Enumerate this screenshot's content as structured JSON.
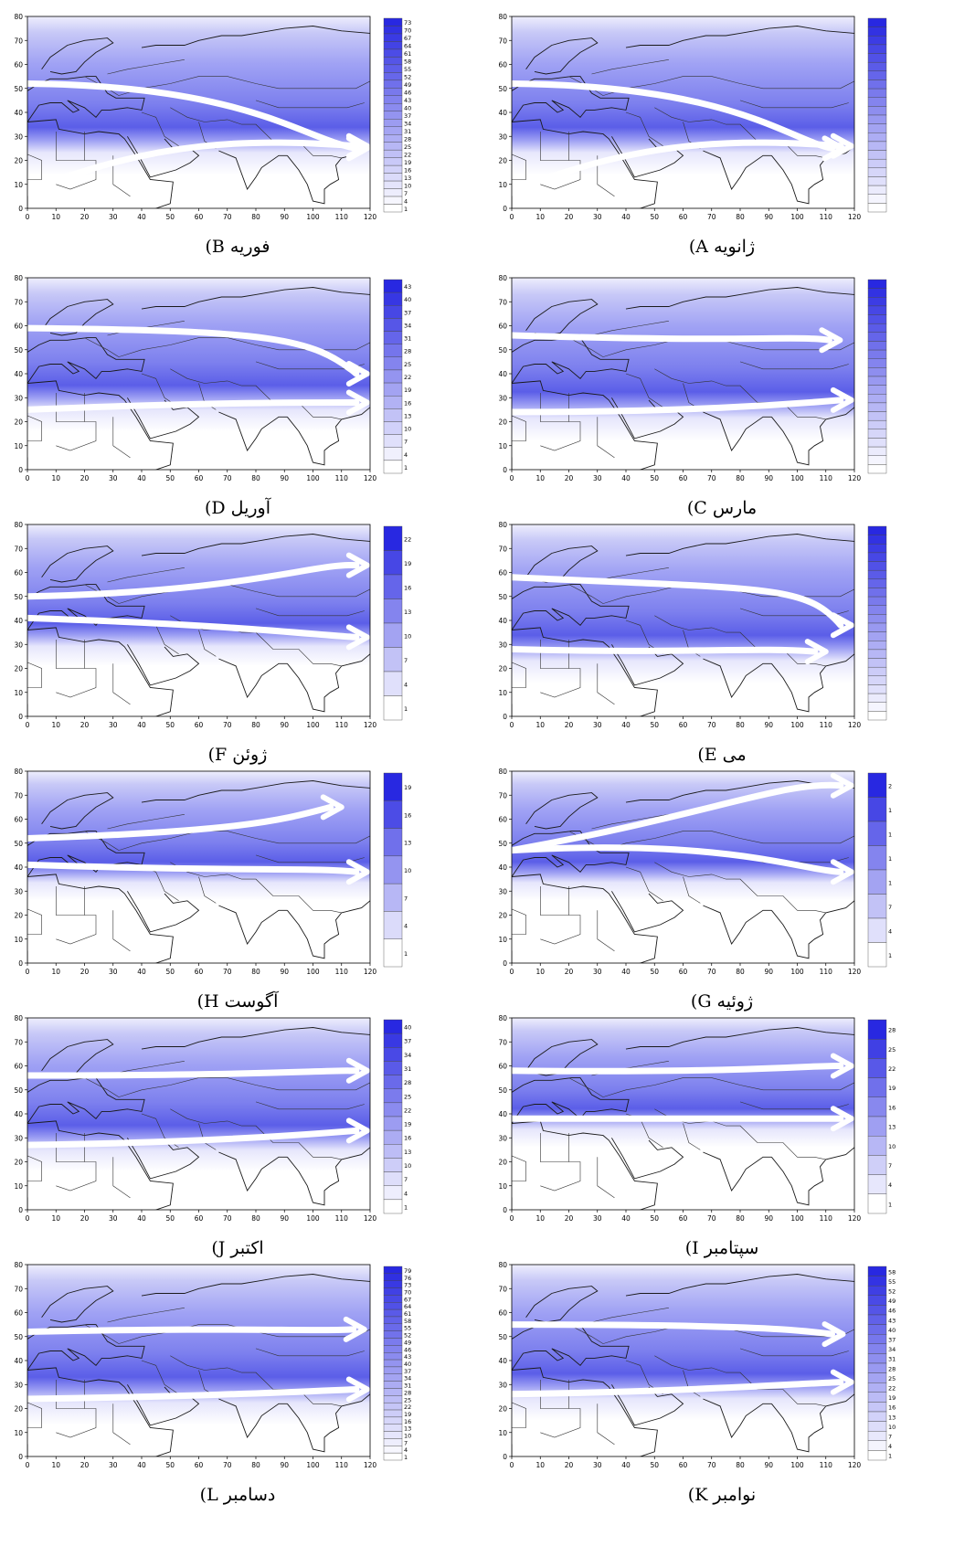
{
  "panels": [
    {
      "id": "B",
      "caption": "فوریه B)",
      "labels": [
        "73",
        "70",
        "67",
        "64",
        "61",
        "58",
        "55",
        "52",
        "49",
        "46",
        "43",
        "40",
        "37",
        "34",
        "31",
        "28",
        "25",
        "22",
        "19",
        "16",
        "13",
        "10",
        "7",
        "4",
        "1"
      ],
      "arrows": [
        [
          52,
          51,
          78,
          30,
          96,
          29,
          119,
          25
        ],
        [
          7,
          29,
          45,
          30,
          80,
          29,
          119,
          26
        ]
      ]
    },
    {
      "id": "A",
      "caption": "ژانویه A)",
      "labels": [],
      "arrows": [
        [
          52,
          51,
          78,
          30,
          96,
          29,
          116,
          25
        ],
        [
          7,
          29,
          45,
          30,
          80,
          29,
          119,
          26
        ]
      ]
    },
    {
      "id": "D",
      "caption": "آوریل D)",
      "labels": [
        "43",
        "40",
        "37",
        "34",
        "31",
        "28",
        "25",
        "22",
        "19",
        "16",
        "13",
        "10",
        "7",
        "4",
        "1"
      ],
      "arrows": [
        [
          59,
          58,
          85,
          56,
          100,
          55,
          119,
          40
        ],
        [
          25,
          28,
          60,
          27,
          95,
          28,
          119,
          28
        ]
      ]
    },
    {
      "id": "C",
      "caption": "مارس C)",
      "labels": [],
      "arrows": [
        [
          56,
          53,
          80,
          55,
          100,
          56,
          115,
          54
        ],
        [
          24,
          24,
          60,
          24,
          95,
          27,
          119,
          29
        ]
      ]
    },
    {
      "id": "F",
      "caption": "ژوئن F)",
      "labels": [
        "22",
        "19",
        "16",
        "13",
        "10",
        "7",
        "4",
        "1"
      ],
      "arrows": [
        [
          50,
          52,
          78,
          60,
          100,
          64,
          119,
          63
        ],
        [
          41,
          38,
          75,
          36,
          100,
          34,
          119,
          33
        ]
      ]
    },
    {
      "id": "E",
      "caption": "می E)",
      "labels": [],
      "arrows": [
        [
          58,
          53,
          90,
          65,
          103,
          55,
          119,
          38
        ],
        [
          28,
          26,
          60,
          30,
          85,
          29,
          110,
          27
        ]
      ]
    },
    {
      "id": "H",
      "caption": "آگوست H)",
      "labels": [
        "19",
        "16",
        "13",
        "10",
        "7",
        "4",
        "1"
      ],
      "arrows": [
        [
          52,
          55,
          78,
          55,
          90,
          60,
          110,
          65
        ],
        [
          41,
          38,
          75,
          36,
          100,
          40,
          119,
          38
        ]
      ]
    },
    {
      "id": "G",
      "caption": "ژوئیه G)",
      "labels": [
        "2",
        "1",
        "1",
        "1",
        "1",
        "7",
        "4",
        "1"
      ],
      "arrows": [
        [
          47,
          62,
          70,
          73,
          95,
          76,
          119,
          74
        ],
        [
          47,
          52,
          75,
          40,
          100,
          39,
          119,
          38
        ]
      ]
    },
    {
      "id": "J",
      "caption": "اکتبر J)",
      "labels": [
        "40",
        "37",
        "34",
        "31",
        "28",
        "25",
        "22",
        "19",
        "16",
        "13",
        "10",
        "7",
        "4",
        "1"
      ],
      "arrows": [
        [
          56,
          56,
          80,
          57,
          100,
          58,
          119,
          58
        ],
        [
          27,
          28,
          60,
          28,
          95,
          31,
          119,
          33
        ]
      ]
    },
    {
      "id": "I",
      "caption": "سپتامبر I)",
      "labels": [
        "28",
        "25",
        "22",
        "19",
        "16",
        "13",
        "10",
        "7",
        "4",
        "1"
      ],
      "arrows": [
        [
          58,
          57,
          80,
          58,
          100,
          60,
          119,
          60
        ],
        [
          38,
          38,
          70,
          39,
          95,
          38,
          119,
          38
        ]
      ]
    },
    {
      "id": "L",
      "caption": "دسامبر L)",
      "labels": [
        "79",
        "76",
        "73",
        "70",
        "67",
        "64",
        "61",
        "58",
        "55",
        "52",
        "49",
        "46",
        "43",
        "40",
        "37",
        "34",
        "31",
        "28",
        "25",
        "22",
        "19",
        "16",
        "13",
        "10",
        "7",
        "4",
        "1"
      ],
      "arrows": [
        [
          52,
          54,
          78,
          54,
          96,
          52,
          118,
          53
        ],
        [
          24,
          25,
          60,
          26,
          95,
          27,
          119,
          28
        ]
      ]
    },
    {
      "id": "K",
      "caption": "نوامبر K)",
      "labels": [
        "58",
        "55",
        "52",
        "49",
        "46",
        "43",
        "40",
        "37",
        "34",
        "31",
        "28",
        "25",
        "22",
        "19",
        "16",
        "13",
        "10",
        "7",
        "4",
        "1"
      ],
      "arrows": [
        [
          55,
          55,
          80,
          55,
          100,
          53,
          116,
          51
        ],
        [
          26,
          27,
          60,
          29,
          95,
          30,
          119,
          31
        ]
      ]
    }
  ],
  "x_ticks": [
    "0",
    "10",
    "20",
    "30",
    "40",
    "50",
    "60",
    "70",
    "80",
    "90",
    "100",
    "110",
    "120"
  ],
  "y_ticks": [
    "0",
    "10",
    "20",
    "30",
    "40",
    "50",
    "60",
    "70",
    "80"
  ],
  "colors": {
    "shade_dark": "#2b2bde",
    "shade_mid": "#8d8ff2",
    "shade_light": "#dcdcfb",
    "arrow": "#ffffff",
    "coast": "#1a1a1a"
  }
}
